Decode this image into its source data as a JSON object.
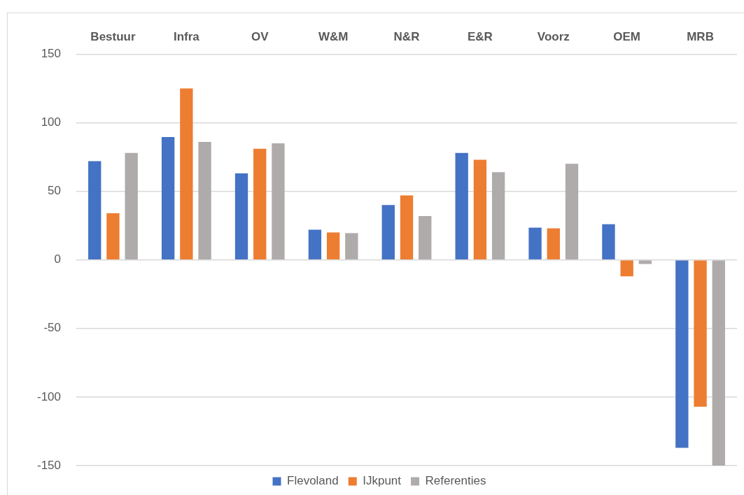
{
  "chart_data": {
    "type": "bar",
    "categories": [
      "Bestuur",
      "Infra",
      "OV",
      "W&M",
      "N&R",
      "E&R",
      "Voorz",
      "OEM",
      "MRB"
    ],
    "series": [
      {
        "name": "Flevoland",
        "color": "#4472c4",
        "values": [
          72,
          89.5,
          63,
          22,
          40,
          78,
          23.5,
          26,
          -137
        ]
      },
      {
        "name": "IJkpunt",
        "color": "#ed7d31",
        "values": [
          34,
          125,
          81,
          20,
          47,
          73,
          23,
          -12,
          -107
        ]
      },
      {
        "name": "Referenties",
        "color": "#afabab",
        "values": [
          78,
          86,
          85,
          19.5,
          32,
          64,
          70,
          -3,
          -150
        ]
      }
    ],
    "ylim": [
      -150,
      150
    ],
    "yticks": [
      -150,
      -100,
      -50,
      0,
      50,
      100,
      150
    ],
    "grid": "y",
    "legend": "bottom"
  }
}
